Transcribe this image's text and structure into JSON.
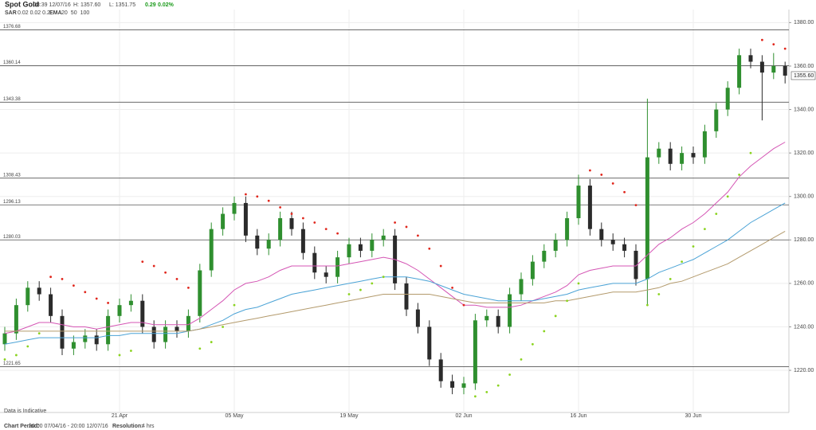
{
  "header": {
    "title": "Spot Gold",
    "time": "08:39 12/07/16",
    "high": "H: 1357.60",
    "low": "L: 1351.75",
    "change": "0.29",
    "change_pct": "0.02%",
    "sar_label": "SAR",
    "sar_params": "0.02 0.02 0.2",
    "ema_label": "EMA"
  },
  "chart_data": {
    "type": "candlestick",
    "categories": [
      null,
      null,
      null,
      null,
      null,
      null,
      null,
      null,
      null,
      null,
      "21 Apr",
      null,
      null,
      null,
      null,
      null,
      null,
      null,
      null,
      null,
      "05 May",
      null,
      null,
      null,
      null,
      null,
      null,
      null,
      null,
      null,
      "19 May",
      null,
      null,
      null,
      null,
      null,
      null,
      null,
      null,
      null,
      "02 Jun",
      null,
      null,
      null,
      null,
      null,
      null,
      null,
      null,
      null,
      "16 Jun",
      null,
      null,
      null,
      null,
      null,
      null,
      null,
      null,
      null,
      "30 Jun",
      null,
      null,
      null,
      null,
      null,
      null,
      null,
      null
    ],
    "open": [
      1232,
      1237,
      1250,
      1258,
      1255,
      1245,
      1230,
      1233,
      1236,
      1232,
      1245,
      1250,
      1252,
      1240,
      1233,
      1240,
      1238,
      1245,
      1266,
      1285,
      1292,
      1297,
      1282,
      1276,
      1280,
      1290,
      1285,
      1274,
      1265,
      1263,
      1272,
      1278,
      1275,
      1280,
      1282,
      1260,
      1248,
      1240,
      1225,
      1215,
      1212,
      1214,
      1243,
      1245,
      1240,
      1255,
      1262,
      1270,
      1275,
      1280,
      1290,
      1305,
      1285,
      1280,
      1278,
      1275,
      1262,
      1318,
      1322,
      1315,
      1320,
      1318,
      1330,
      1340,
      1350,
      1365,
      1362,
      1357,
      1360
    ],
    "high": [
      1240,
      1253,
      1261,
      1261,
      1258,
      1248,
      1236,
      1239,
      1239,
      1248,
      1253,
      1255,
      1255,
      1243,
      1243,
      1243,
      1248,
      1269,
      1288,
      1295,
      1300,
      1300,
      1285,
      1283,
      1293,
      1293,
      1288,
      1277,
      1268,
      1275,
      1281,
      1281,
      1283,
      1285,
      1285,
      1263,
      1251,
      1243,
      1228,
      1218,
      1217,
      1246,
      1248,
      1248,
      1258,
      1265,
      1273,
      1278,
      1283,
      1293,
      1310,
      1308,
      1288,
      1283,
      1281,
      1278,
      1345,
      1325,
      1325,
      1323,
      1323,
      1333,
      1343,
      1353,
      1368,
      1368,
      1365,
      1366,
      1362
    ],
    "low": [
      1229,
      1234,
      1247,
      1252,
      1242,
      1227,
      1227,
      1230,
      1229,
      1229,
      1242,
      1247,
      1237,
      1230,
      1230,
      1235,
      1235,
      1242,
      1263,
      1282,
      1289,
      1279,
      1273,
      1273,
      1277,
      1282,
      1271,
      1262,
      1260,
      1260,
      1269,
      1272,
      1272,
      1277,
      1257,
      1245,
      1237,
      1222,
      1212,
      1209,
      1209,
      1211,
      1240,
      1237,
      1237,
      1252,
      1259,
      1267,
      1272,
      1277,
      1287,
      1282,
      1277,
      1275,
      1272,
      1259,
      1250,
      1315,
      1312,
      1312,
      1315,
      1315,
      1327,
      1337,
      1347,
      1359,
      1335,
      1354,
      1352
    ],
    "close": [
      1237,
      1250,
      1258,
      1255,
      1245,
      1230,
      1233,
      1236,
      1232,
      1245,
      1250,
      1252,
      1240,
      1233,
      1240,
      1238,
      1245,
      1266,
      1285,
      1292,
      1297,
      1282,
      1276,
      1280,
      1290,
      1285,
      1274,
      1265,
      1263,
      1272,
      1278,
      1275,
      1280,
      1282,
      1260,
      1248,
      1240,
      1225,
      1215,
      1212,
      1214,
      1243,
      1245,
      1240,
      1255,
      1262,
      1270,
      1275,
      1280,
      1290,
      1305,
      1285,
      1280,
      1278,
      1275,
      1262,
      1318,
      1322,
      1315,
      1320,
      1318,
      1330,
      1340,
      1350,
      1365,
      1362,
      1357,
      1360,
      1355.6
    ],
    "up_color": "#2f8f2f",
    "down_color": "#2b2b2b",
    "series": [
      {
        "name": "20",
        "color": "#d455b4",
        "values": [
          1237,
          1238,
          1240,
          1242,
          1242,
          1241,
          1240,
          1240,
          1239,
          1240,
          1241,
          1242,
          1242,
          1241,
          1241,
          1241,
          1241,
          1244,
          1248,
          1252,
          1257,
          1260,
          1261,
          1263,
          1266,
          1268,
          1268,
          1268,
          1268,
          1268,
          1269,
          1270,
          1271,
          1272,
          1271,
          1269,
          1266,
          1262,
          1258,
          1254,
          1250,
          1250,
          1249,
          1249,
          1249,
          1250,
          1252,
          1254,
          1256,
          1259,
          1264,
          1266,
          1267,
          1268,
          1268,
          1268,
          1273,
          1278,
          1281,
          1285,
          1288,
          1292,
          1297,
          1302,
          1309,
          1314,
          1318,
          1322,
          1325
        ]
      },
      {
        "name": "50",
        "color": "#4ba3d6",
        "values": [
          1232,
          1233,
          1234,
          1235,
          1235,
          1235,
          1235,
          1235,
          1235,
          1236,
          1236,
          1237,
          1237,
          1237,
          1237,
          1237,
          1238,
          1239,
          1241,
          1243,
          1246,
          1248,
          1249,
          1251,
          1253,
          1255,
          1256,
          1257,
          1258,
          1259,
          1260,
          1261,
          1262,
          1263,
          1263,
          1263,
          1262,
          1261,
          1259,
          1257,
          1255,
          1254,
          1253,
          1252,
          1252,
          1252,
          1252,
          1253,
          1254,
          1255,
          1257,
          1258,
          1259,
          1260,
          1260,
          1260,
          1262,
          1265,
          1267,
          1269,
          1271,
          1274,
          1277,
          1280,
          1284,
          1288,
          1291,
          1294,
          1297
        ]
      },
      {
        "name": "100",
        "color": "#b39a6c",
        "values": [
          1238,
          1238,
          1238,
          1238,
          1238,
          1238,
          1238,
          1238,
          1238,
          1238,
          1238,
          1238,
          1238,
          1238,
          1238,
          1238,
          1238,
          1239,
          1240,
          1241,
          1242,
          1243,
          1244,
          1245,
          1246,
          1247,
          1248,
          1249,
          1250,
          1251,
          1252,
          1253,
          1254,
          1255,
          1255,
          1255,
          1255,
          1255,
          1254,
          1253,
          1252,
          1251,
          1251,
          1251,
          1251,
          1251,
          1251,
          1251,
          1252,
          1252,
          1253,
          1254,
          1255,
          1256,
          1256,
          1256,
          1257,
          1258,
          1260,
          1261,
          1263,
          1265,
          1267,
          1269,
          1272,
          1275,
          1278,
          1281,
          1284
        ]
      }
    ],
    "sar": {
      "above_color": "#e0261c",
      "below_color": "#8ad31f",
      "values": [
        1225,
        1227,
        1231,
        1237,
        1263,
        1262,
        1259,
        1256,
        1253,
        1251,
        1227,
        1229,
        1270,
        1268,
        1265,
        1262,
        1258,
        1230,
        1233,
        1240,
        1250,
        1301,
        1300,
        1298,
        1295,
        1292,
        1290,
        1288,
        1285,
        1283,
        1255,
        1257,
        1260,
        1263,
        1288,
        1286,
        1282,
        1276,
        1268,
        1258,
        1250,
        1208,
        1210,
        1213,
        1218,
        1225,
        1232,
        1238,
        1245,
        1252,
        1260,
        1312,
        1310,
        1306,
        1302,
        1296,
        1250,
        1255,
        1262,
        1270,
        1277,
        1285,
        1292,
        1300,
        1310,
        1320,
        1372,
        1370,
        1368
      ]
    },
    "ylim": [
      1200.6,
      1386
    ],
    "yticks": [
      {
        "value": 1220,
        "label": "1220.00"
      },
      {
        "value": 1240,
        "label": "1240.00"
      },
      {
        "value": 1260,
        "label": "1260.00"
      },
      {
        "value": 1280,
        "label": "1280.00"
      },
      {
        "value": 1300,
        "label": "1300.00"
      },
      {
        "value": 1320,
        "label": "1320.00"
      },
      {
        "value": 1340,
        "label": "1340.00"
      },
      {
        "value": 1360,
        "label": "1360.00"
      },
      {
        "value": 1380,
        "label": "1380.00"
      }
    ],
    "levels": [
      {
        "value": 1376.68,
        "label": "1376.68"
      },
      {
        "value": 1360.14,
        "label": "1360.14"
      },
      {
        "value": 1343.38,
        "label": "1343.38"
      },
      {
        "value": 1308.43,
        "label": "1308.43"
      },
      {
        "value": 1296.13,
        "label": "1296.13"
      },
      {
        "value": 1280.03,
        "label": "1280.03"
      },
      {
        "value": 1221.65,
        "label": "1221.65"
      }
    ],
    "last_price": {
      "value": 1355.6,
      "label": "1355.60"
    },
    "grid": true
  },
  "footer": {
    "note": "Data is Indicative",
    "period_label": "Chart Period:",
    "period": "20:00 07/04/16 - 20:00 12/07/16",
    "resolution_label": "Resolution:",
    "resolution": "4 hrs"
  }
}
